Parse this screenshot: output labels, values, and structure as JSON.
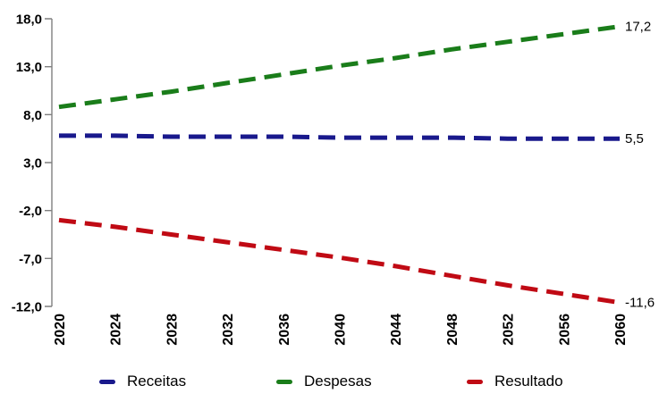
{
  "chart_data": {
    "type": "line",
    "title": "",
    "xlabel": "",
    "ylabel": "",
    "grid": false,
    "line_style": "dashed",
    "legend_position": "bottom",
    "axis_color": "#7F7F7F",
    "x": [
      2020,
      2024,
      2028,
      2032,
      2036,
      2040,
      2044,
      2048,
      2052,
      2056,
      2060
    ],
    "x_tick_labels": [
      "2020",
      "2024",
      "2028",
      "2032",
      "2036",
      "2040",
      "2044",
      "2048",
      "2052",
      "2056",
      "2060"
    ],
    "y_tick_values": [
      18,
      13,
      8,
      3,
      -2,
      -7,
      -12
    ],
    "y_tick_labels": [
      "18,0",
      "13,0",
      "8,0",
      "3,0",
      "-2,0",
      "-7,0",
      "-12,0"
    ],
    "ylim": [
      -12,
      18
    ],
    "series": [
      {
        "name": "Receitas",
        "color": "#19198C",
        "end_label": "5,5",
        "values": [
          5.8,
          5.8,
          5.7,
          5.7,
          5.7,
          5.6,
          5.6,
          5.6,
          5.5,
          5.5,
          5.5
        ]
      },
      {
        "name": "Despesas",
        "color": "#1A7D1A",
        "end_label": "17,2",
        "values": [
          8.8,
          9.6,
          10.4,
          11.3,
          12.2,
          13.1,
          13.9,
          14.8,
          15.6,
          16.4,
          17.2
        ]
      },
      {
        "name": "Resultado",
        "color": "#C00A14",
        "end_label": "-11,6",
        "values": [
          -3.0,
          -3.7,
          -4.5,
          -5.3,
          -6.1,
          -6.9,
          -7.8,
          -8.8,
          -9.8,
          -10.7,
          -11.6
        ]
      }
    ]
  },
  "legend": {
    "items": [
      {
        "label": "Receitas",
        "color": "#19198C"
      },
      {
        "label": "Despesas",
        "color": "#1A7D1A"
      },
      {
        "label": "Resultado",
        "color": "#C00A14"
      }
    ]
  }
}
